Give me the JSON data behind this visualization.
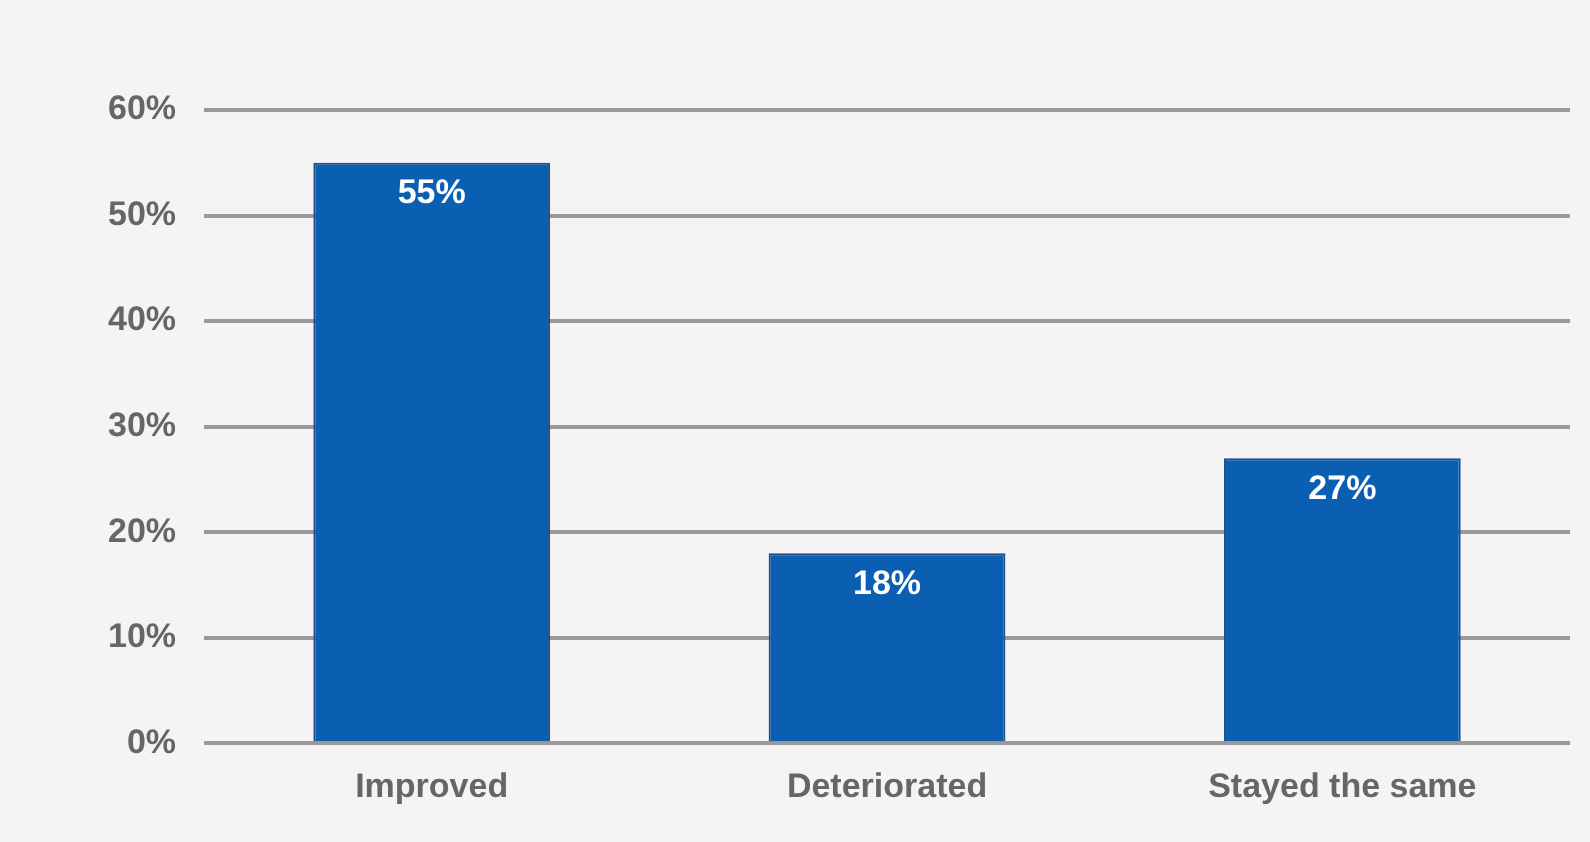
{
  "chart_data": {
    "type": "bar",
    "categories": [
      "Improved",
      "Deteriorated",
      "Stayed the same"
    ],
    "values": [
      55,
      18,
      27
    ],
    "color": "#0b5fb3",
    "value_labels": [
      "55%",
      "18%",
      "27%"
    ],
    "ylim": [
      0,
      60
    ],
    "yticks": [
      {
        "value": 0,
        "label": "0%"
      },
      {
        "value": 10,
        "label": "10%"
      },
      {
        "value": 20,
        "label": "20%"
      },
      {
        "value": 30,
        "label": "30%"
      },
      {
        "value": 40,
        "label": "40%"
      },
      {
        "value": 50,
        "label": "50%"
      },
      {
        "value": 60,
        "label": "60%"
      }
    ],
    "grid": "y",
    "legend": false
  }
}
